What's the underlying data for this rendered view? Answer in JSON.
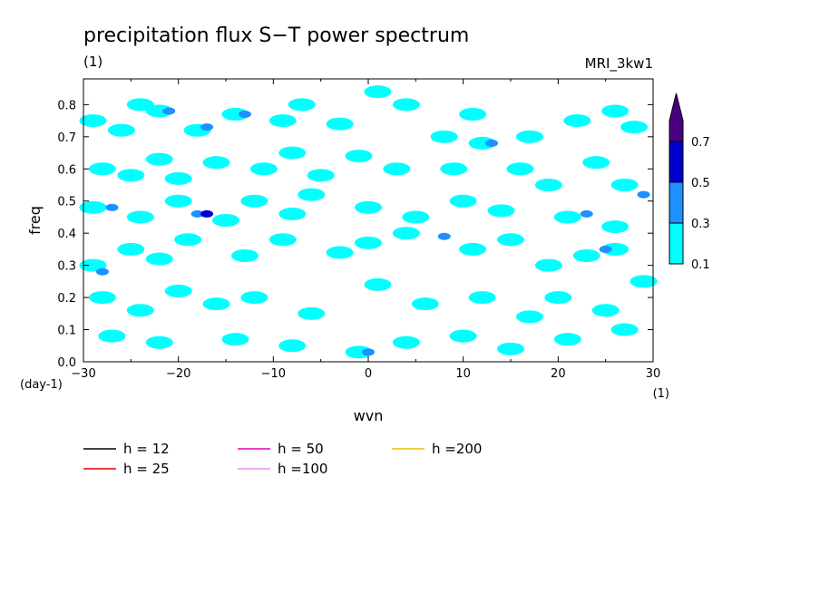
{
  "chart_data": {
    "type": "heatmap",
    "title": "precipitation flux S−T power spectrum",
    "subtitle_left": "(1)",
    "subtitle_right": "MRI_3kw1",
    "xlabel": "wvn",
    "ylabel": "freq",
    "x_unit": "(1)",
    "y_unit": "(day-1)",
    "xlim": [
      -30,
      30
    ],
    "ylim": [
      0,
      0.88
    ],
    "x_ticks": [
      -30,
      -20,
      -10,
      0,
      10,
      20,
      30
    ],
    "x_tick_labels": [
      "−30",
      "−20",
      "−10",
      "0",
      "10",
      "20",
      "30"
    ],
    "y_ticks": [
      0,
      0.1,
      0.2,
      0.3,
      0.4,
      0.5,
      0.6,
      0.7,
      0.8
    ],
    "y_tick_labels": [
      "0.0",
      "0.1",
      "0.2",
      "0.3",
      "0.4",
      "0.5",
      "0.6",
      "0.7",
      "0.8"
    ],
    "grid": false,
    "colorbar": {
      "levels": [
        0.1,
        0.3,
        0.5,
        0.7
      ],
      "level_labels": [
        "0.1",
        "0.3",
        "0.5",
        "0.7"
      ],
      "colors": [
        "#00ffff",
        "#1e90ff",
        "#0000cd",
        "#4b0082"
      ]
    },
    "series": [
      {
        "name": "h = 12",
        "color": "#000000",
        "h": 12
      },
      {
        "name": "h = 25",
        "color": "#e00000",
        "h": 25
      },
      {
        "name": "h = 50",
        "color": "#e000b0",
        "h": 50
      },
      {
        "name": "h =100",
        "color": "#e890e8",
        "h": 100
      },
      {
        "name": "h =200",
        "color": "#e8c000",
        "h": 200
      }
    ],
    "cells": [
      {
        "x": -29,
        "y": 0.75,
        "v": 0.2
      },
      {
        "x": -26,
        "y": 0.72,
        "v": 0.2
      },
      {
        "x": -24,
        "y": 0.8,
        "v": 0.2
      },
      {
        "x": -22,
        "y": 0.78,
        "v": 0.2
      },
      {
        "x": -21,
        "y": 0.78,
        "v": 0.4
      },
      {
        "x": -18,
        "y": 0.72,
        "v": 0.2
      },
      {
        "x": -17,
        "y": 0.73,
        "v": 0.4
      },
      {
        "x": -14,
        "y": 0.77,
        "v": 0.2
      },
      {
        "x": -13,
        "y": 0.77,
        "v": 0.4
      },
      {
        "x": -9,
        "y": 0.75,
        "v": 0.2
      },
      {
        "x": -7,
        "y": 0.8,
        "v": 0.2
      },
      {
        "x": -3,
        "y": 0.74,
        "v": 0.2
      },
      {
        "x": 1,
        "y": 0.84,
        "v": 0.2
      },
      {
        "x": 4,
        "y": 0.8,
        "v": 0.2
      },
      {
        "x": 8,
        "y": 0.7,
        "v": 0.2
      },
      {
        "x": 11,
        "y": 0.77,
        "v": 0.2
      },
      {
        "x": 12,
        "y": 0.68,
        "v": 0.2
      },
      {
        "x": 13,
        "y": 0.68,
        "v": 0.4
      },
      {
        "x": 17,
        "y": 0.7,
        "v": 0.2
      },
      {
        "x": 22,
        "y": 0.75,
        "v": 0.2
      },
      {
        "x": 26,
        "y": 0.78,
        "v": 0.2
      },
      {
        "x": 28,
        "y": 0.73,
        "v": 0.2
      },
      {
        "x": -28,
        "y": 0.6,
        "v": 0.2
      },
      {
        "x": -25,
        "y": 0.58,
        "v": 0.2
      },
      {
        "x": -22,
        "y": 0.63,
        "v": 0.2
      },
      {
        "x": -20,
        "y": 0.57,
        "v": 0.2
      },
      {
        "x": -16,
        "y": 0.62,
        "v": 0.2
      },
      {
        "x": -11,
        "y": 0.6,
        "v": 0.2
      },
      {
        "x": -8,
        "y": 0.65,
        "v": 0.2
      },
      {
        "x": -5,
        "y": 0.58,
        "v": 0.2
      },
      {
        "x": -1,
        "y": 0.64,
        "v": 0.2
      },
      {
        "x": 3,
        "y": 0.6,
        "v": 0.2
      },
      {
        "x": 9,
        "y": 0.6,
        "v": 0.2
      },
      {
        "x": 16,
        "y": 0.6,
        "v": 0.2
      },
      {
        "x": 19,
        "y": 0.55,
        "v": 0.2
      },
      {
        "x": 24,
        "y": 0.62,
        "v": 0.2
      },
      {
        "x": 27,
        "y": 0.55,
        "v": 0.2
      },
      {
        "x": 29,
        "y": 0.52,
        "v": 0.4
      },
      {
        "x": -29,
        "y": 0.48,
        "v": 0.2
      },
      {
        "x": -27,
        "y": 0.48,
        "v": 0.4
      },
      {
        "x": -24,
        "y": 0.45,
        "v": 0.2
      },
      {
        "x": -20,
        "y": 0.5,
        "v": 0.2
      },
      {
        "x": -18,
        "y": 0.46,
        "v": 0.4
      },
      {
        "x": -17,
        "y": 0.46,
        "v": 0.6
      },
      {
        "x": -15,
        "y": 0.44,
        "v": 0.2
      },
      {
        "x": -12,
        "y": 0.5,
        "v": 0.2
      },
      {
        "x": -8,
        "y": 0.46,
        "v": 0.2
      },
      {
        "x": -6,
        "y": 0.52,
        "v": 0.2
      },
      {
        "x": 0,
        "y": 0.48,
        "v": 0.2
      },
      {
        "x": 5,
        "y": 0.45,
        "v": 0.2
      },
      {
        "x": 10,
        "y": 0.5,
        "v": 0.2
      },
      {
        "x": 14,
        "y": 0.47,
        "v": 0.2
      },
      {
        "x": 21,
        "y": 0.45,
        "v": 0.2
      },
      {
        "x": 23,
        "y": 0.46,
        "v": 0.4
      },
      {
        "x": 26,
        "y": 0.42,
        "v": 0.2
      },
      {
        "x": -29,
        "y": 0.3,
        "v": 0.2
      },
      {
        "x": -28,
        "y": 0.28,
        "v": 0.4
      },
      {
        "x": -25,
        "y": 0.35,
        "v": 0.2
      },
      {
        "x": -22,
        "y": 0.32,
        "v": 0.2
      },
      {
        "x": -19,
        "y": 0.38,
        "v": 0.2
      },
      {
        "x": -13,
        "y": 0.33,
        "v": 0.2
      },
      {
        "x": -9,
        "y": 0.38,
        "v": 0.2
      },
      {
        "x": -3,
        "y": 0.34,
        "v": 0.2
      },
      {
        "x": 0,
        "y": 0.37,
        "v": 0.2
      },
      {
        "x": 4,
        "y": 0.4,
        "v": 0.2
      },
      {
        "x": 8,
        "y": 0.39,
        "v": 0.4
      },
      {
        "x": 11,
        "y": 0.35,
        "v": 0.2
      },
      {
        "x": 15,
        "y": 0.38,
        "v": 0.2
      },
      {
        "x": 19,
        "y": 0.3,
        "v": 0.2
      },
      {
        "x": 23,
        "y": 0.33,
        "v": 0.2
      },
      {
        "x": 26,
        "y": 0.35,
        "v": 0.2
      },
      {
        "x": 25,
        "y": 0.35,
        "v": 0.4
      },
      {
        "x": -28,
        "y": 0.2,
        "v": 0.2
      },
      {
        "x": -24,
        "y": 0.16,
        "v": 0.2
      },
      {
        "x": -20,
        "y": 0.22,
        "v": 0.2
      },
      {
        "x": -16,
        "y": 0.18,
        "v": 0.2
      },
      {
        "x": -12,
        "y": 0.2,
        "v": 0.2
      },
      {
        "x": -6,
        "y": 0.15,
        "v": 0.2
      },
      {
        "x": 1,
        "y": 0.24,
        "v": 0.2
      },
      {
        "x": 6,
        "y": 0.18,
        "v": 0.2
      },
      {
        "x": 12,
        "y": 0.2,
        "v": 0.2
      },
      {
        "x": 17,
        "y": 0.14,
        "v": 0.2
      },
      {
        "x": 20,
        "y": 0.2,
        "v": 0.2
      },
      {
        "x": 25,
        "y": 0.16,
        "v": 0.2
      },
      {
        "x": 29,
        "y": 0.25,
        "v": 0.2
      },
      {
        "x": -27,
        "y": 0.08,
        "v": 0.2
      },
      {
        "x": -22,
        "y": 0.06,
        "v": 0.2
      },
      {
        "x": -14,
        "y": 0.07,
        "v": 0.2
      },
      {
        "x": -8,
        "y": 0.05,
        "v": 0.2
      },
      {
        "x": -1,
        "y": 0.03,
        "v": 0.2
      },
      {
        "x": 0,
        "y": 0.03,
        "v": 0.4
      },
      {
        "x": 4,
        "y": 0.06,
        "v": 0.2
      },
      {
        "x": 10,
        "y": 0.08,
        "v": 0.2
      },
      {
        "x": 15,
        "y": 0.04,
        "v": 0.2
      },
      {
        "x": 21,
        "y": 0.07,
        "v": 0.2
      },
      {
        "x": 27,
        "y": 0.1,
        "v": 0.2
      }
    ]
  }
}
